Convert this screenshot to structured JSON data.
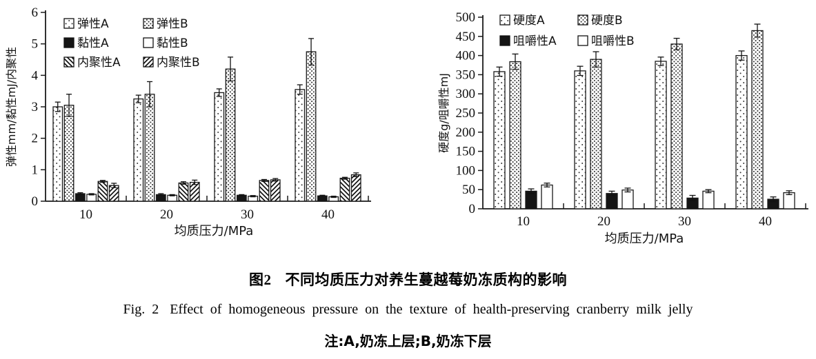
{
  "figure": {
    "caption_zh_label": "图2",
    "caption_zh_title": "不同均质压力对养生蔓越莓奶冻质构的影响",
    "caption_en_label": "Fig. 2",
    "caption_en_title": "Effect of homogeneous pressure on the texture of health-preserving cranberry milk jelly",
    "note": "注:A,奶冻上层;B,奶冻下层"
  },
  "chart_data": [
    {
      "type": "bar",
      "title": "",
      "categories": [
        "10",
        "20",
        "30",
        "40"
      ],
      "xlabel": "均质压力/MPa",
      "ylabel": "弹性mm/黏性mJ/内聚性",
      "ylim": [
        0,
        6
      ],
      "yticks": [
        0,
        1,
        2,
        3,
        4,
        5,
        6
      ],
      "grid": false,
      "legend_position": "top-inside",
      "legend_columns": 2,
      "series": [
        {
          "name": "弹性A",
          "pattern": "dots-sparse",
          "values": [
            3.0,
            3.25,
            3.45,
            3.55
          ],
          "errors": [
            0.15,
            0.12,
            0.12,
            0.15
          ]
        },
        {
          "name": "弹性B",
          "pattern": "dots-dense",
          "values": [
            3.05,
            3.4,
            4.2,
            4.75
          ],
          "errors": [
            0.35,
            0.4,
            0.38,
            0.42
          ]
        },
        {
          "name": "黏性A",
          "pattern": "solid-black",
          "values": [
            0.24,
            0.21,
            0.19,
            0.17
          ],
          "errors": [
            0.03,
            0.03,
            0.02,
            0.02
          ]
        },
        {
          "name": "黏性B",
          "pattern": "plain-white",
          "values": [
            0.22,
            0.19,
            0.16,
            0.14
          ],
          "errors": [
            0.02,
            0.02,
            0.02,
            0.02
          ]
        },
        {
          "name": "内聚性A",
          "pattern": "hatch-backslash",
          "values": [
            0.63,
            0.58,
            0.66,
            0.73
          ],
          "errors": [
            0.03,
            0.04,
            0.03,
            0.03
          ]
        },
        {
          "name": "内聚性B",
          "pattern": "hatch-slash",
          "values": [
            0.5,
            0.6,
            0.68,
            0.84
          ],
          "errors": [
            0.07,
            0.07,
            0.04,
            0.06
          ]
        }
      ]
    },
    {
      "type": "bar",
      "title": "",
      "categories": [
        "10",
        "20",
        "30",
        "40"
      ],
      "xlabel": "均质压力/MPa",
      "ylabel": "硬度g/咀嚼性mJ",
      "ylim": [
        0,
        500
      ],
      "yticks": [
        0,
        50,
        100,
        150,
        200,
        250,
        300,
        350,
        400,
        450,
        500
      ],
      "grid": false,
      "legend_position": "top-inside",
      "legend_columns": 2,
      "series": [
        {
          "name": "硬度A",
          "pattern": "dots-sparse",
          "values": [
            358,
            360,
            385,
            400
          ],
          "errors": [
            12,
            12,
            11,
            12
          ]
        },
        {
          "name": "硬度B",
          "pattern": "dots-dense",
          "values": [
            384,
            390,
            430,
            465
          ],
          "errors": [
            20,
            20,
            15,
            17
          ]
        },
        {
          "name": "咀嚼性A",
          "pattern": "solid-black",
          "values": [
            46,
            40,
            28,
            25
          ],
          "errors": [
            6,
            6,
            7,
            6
          ]
        },
        {
          "name": "咀嚼性B",
          "pattern": "plain-white",
          "values": [
            62,
            49,
            46,
            42
          ],
          "errors": [
            5,
            5,
            4,
            5
          ]
        }
      ]
    }
  ]
}
